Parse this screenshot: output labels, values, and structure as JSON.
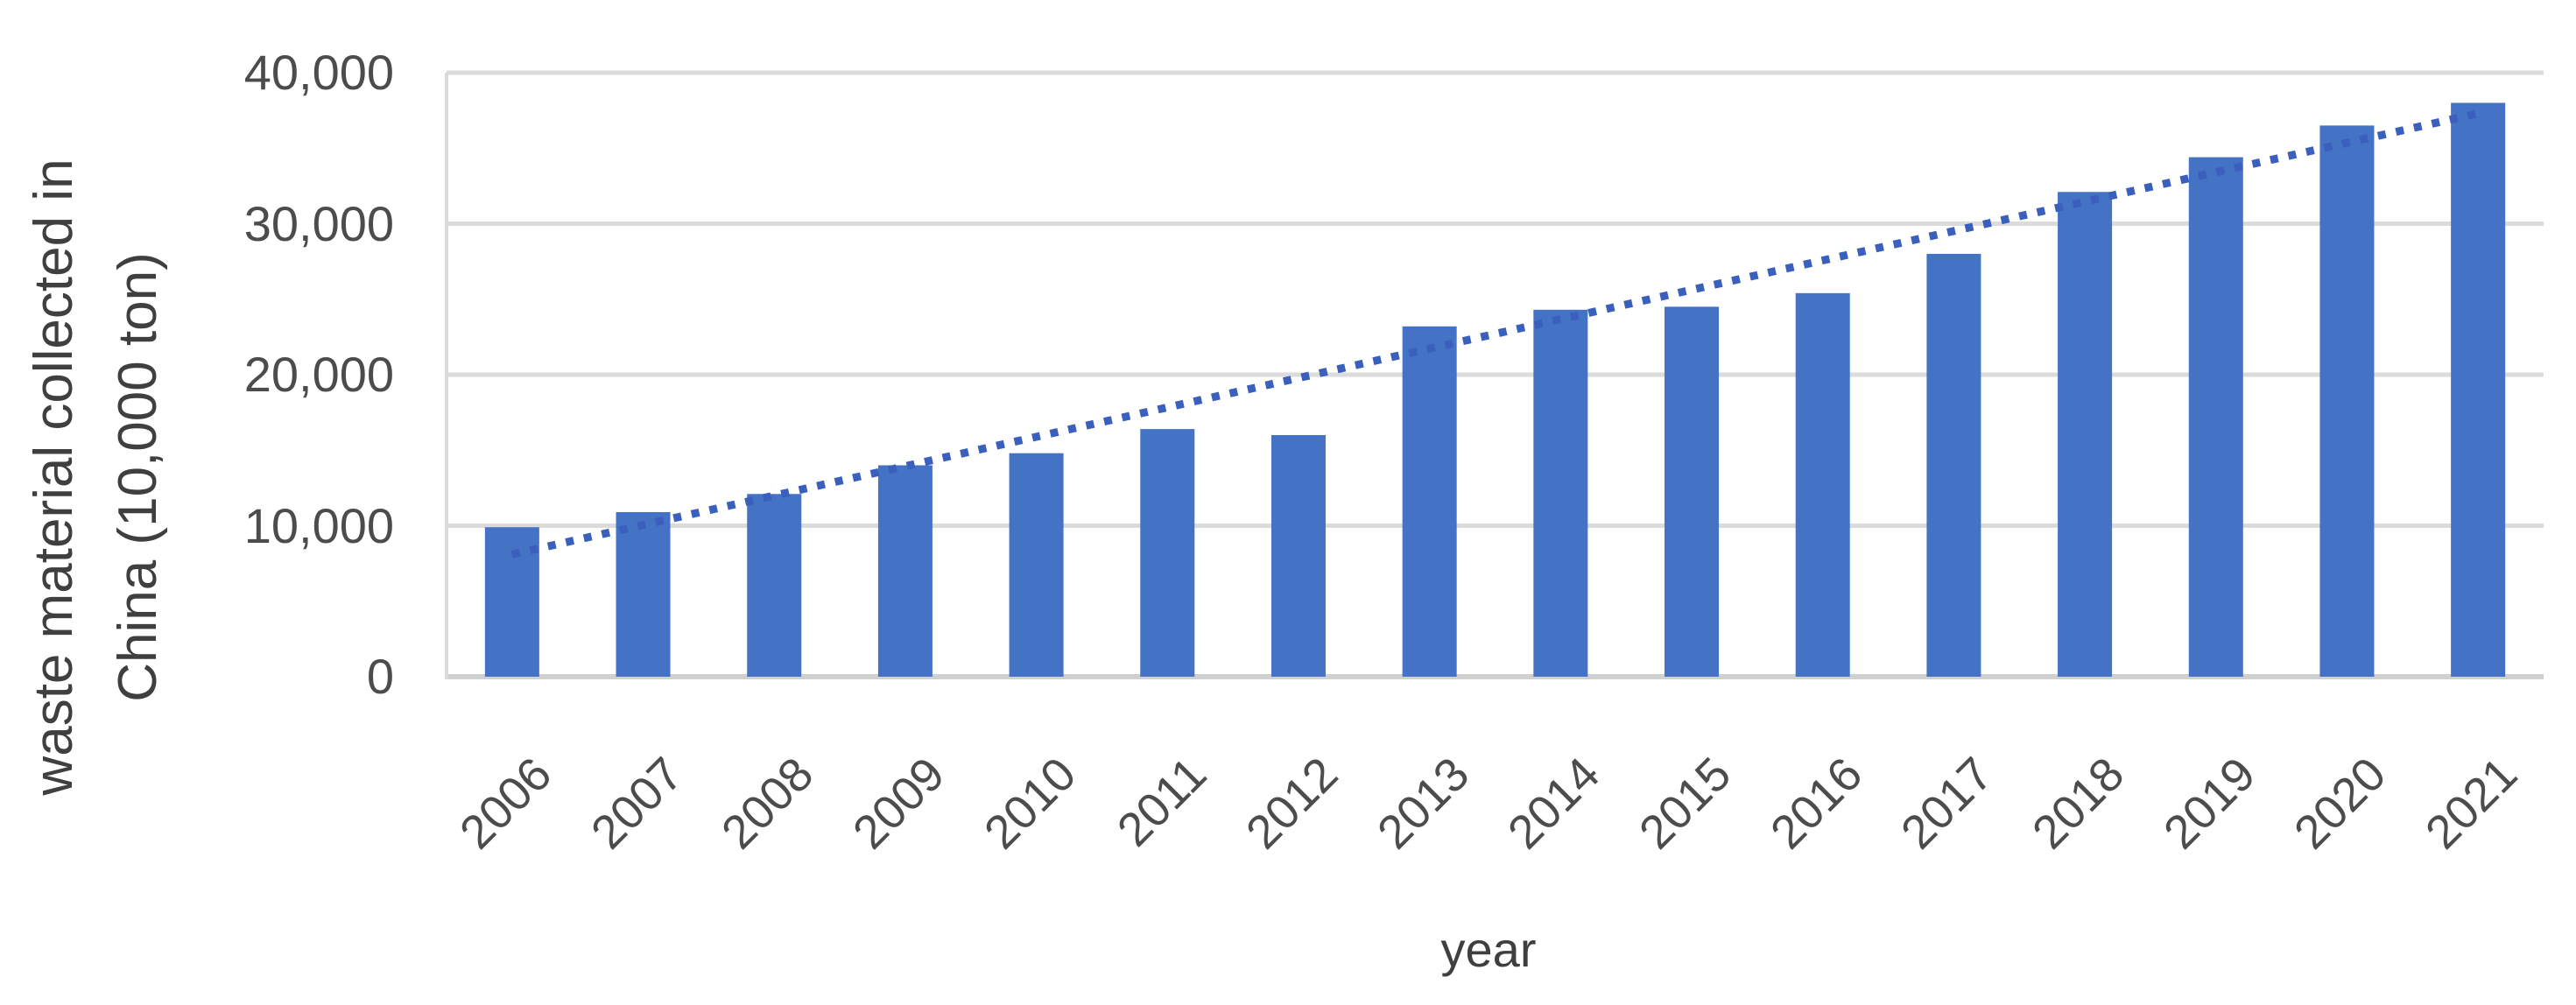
{
  "page": {
    "background_color": "#FFFFFF"
  },
  "chart_data": {
    "type": "bar",
    "title": "",
    "categories": [
      "2006",
      "2007",
      "2008",
      "2009",
      "2010",
      "2011",
      "2012",
      "2013",
      "2014",
      "2015",
      "2016",
      "2017",
      "2018",
      "2019",
      "2020",
      "2021"
    ],
    "values": [
      9900,
      10900,
      12100,
      14000,
      14800,
      16400,
      16000,
      23200,
      24300,
      24500,
      25400,
      28000,
      32100,
      34400,
      36500,
      38000
    ],
    "xlabel": "year",
    "ylabel": "waste material collected in China (10,000 ton)",
    "ylabel_lines": [
      "waste material collected in",
      "China (10,000 ton)"
    ],
    "ylim": [
      0,
      40000
    ],
    "ytick_values": [
      40000,
      30000,
      20000,
      10000,
      0
    ],
    "ytick_labels": [
      "40,000",
      "30,000",
      "20,000",
      "10,000",
      "0"
    ],
    "grid": true,
    "legend": false,
    "bar_color": "#4472C4",
    "gridline_color": "#DBDBDB",
    "baseline_color": "#D0D0D0",
    "axis_line_color": "#DBDBDB",
    "tick_text_color": "#4C4C4C",
    "title_text_color": "#3F3F3F",
    "trendline": {
      "type": "linear",
      "style": "dotted",
      "color": "#3A5FBC",
      "start_value": 8100,
      "end_value": 37300
    }
  }
}
